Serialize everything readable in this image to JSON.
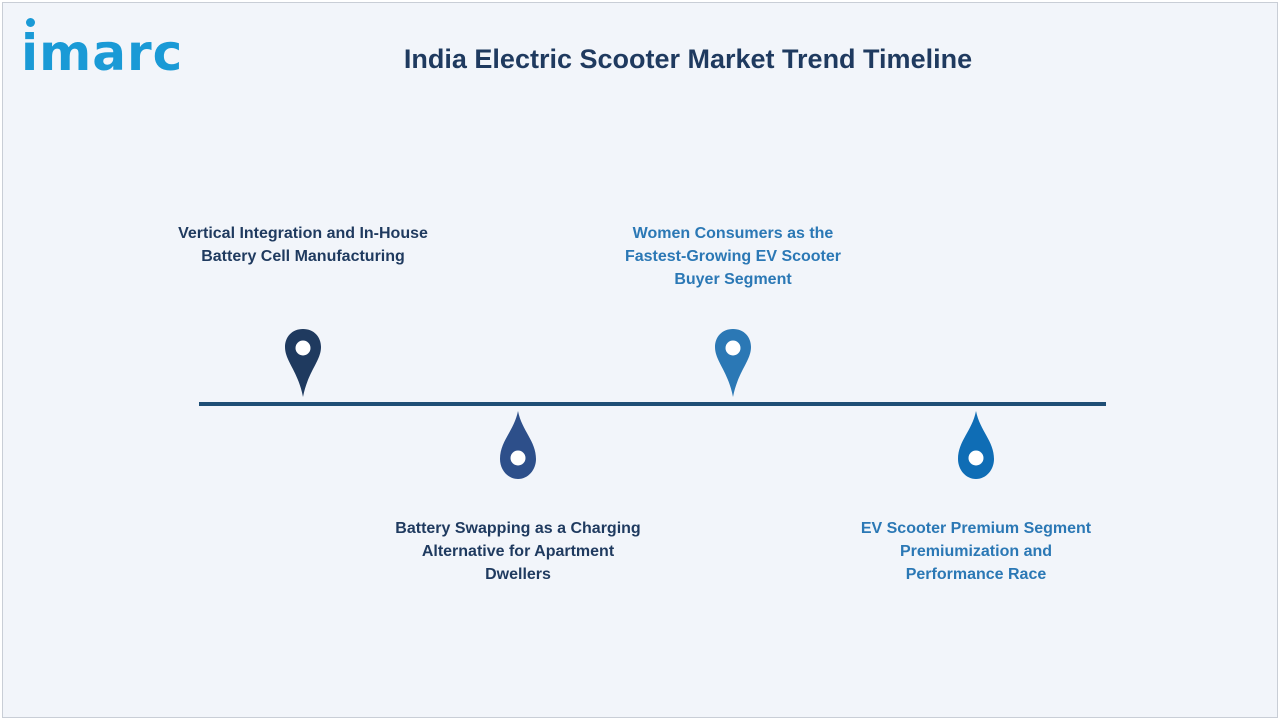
{
  "header": {
    "logo_text": "imarc",
    "title": "India Electric Scooter Market Trend Timeline"
  },
  "colors": {
    "background": "#f2f5fa",
    "timeline_line": "#1f4e75",
    "title": "#1f3a5f",
    "logo": "#1a9ad6"
  },
  "timeline": {
    "items": [
      {
        "label": "Vertical Integration and In-House Battery Cell Manufacturing",
        "position": "above",
        "pin_color": "#1f3a5f",
        "pin_icon": "location-pin-icon"
      },
      {
        "label": "Battery Swapping as a Charging Alternative for Apartment Dwellers",
        "position": "below",
        "pin_color": "#2d4f8a",
        "pin_icon": "drop-pin-icon"
      },
      {
        "label": "Women Consumers as the Fastest-Growing EV Scooter Buyer Segment",
        "position": "above",
        "pin_color": "#2b78b5",
        "pin_icon": "location-pin-icon"
      },
      {
        "label": "EV Scooter Premium Segment Premiumization and Performance Race",
        "position": "below",
        "pin_color": "#0f6db5",
        "pin_icon": "drop-pin-icon"
      }
    ]
  }
}
